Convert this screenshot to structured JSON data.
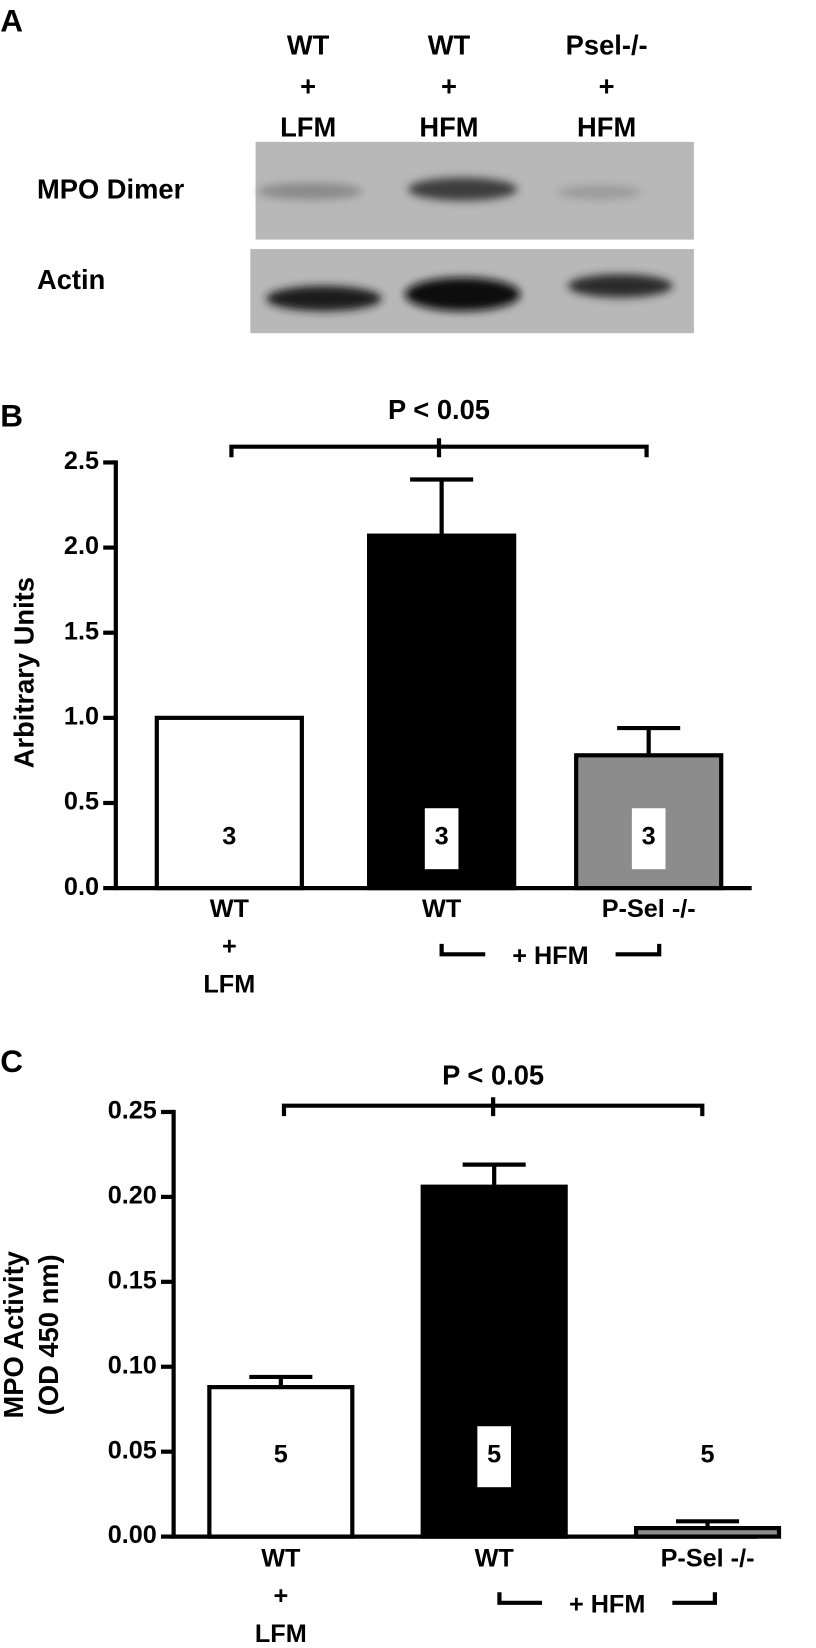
{
  "blot": {
    "panel_label": "A",
    "lanes": [
      [
        "WT",
        "+",
        "LFM"
      ],
      [
        "WT",
        "+",
        "HFM"
      ],
      [
        "Psel-/-",
        "+",
        "HFM"
      ]
    ],
    "rows": [
      "MPO Dimer",
      "Actin"
    ]
  },
  "chart_data": [
    {
      "type": "bar",
      "panel_label": "B",
      "ylabel": [
        "Arbitrary Units"
      ],
      "categories": [
        [
          "WT",
          "+",
          "LFM"
        ],
        [
          "WT"
        ],
        [
          "P-Sel -/-"
        ]
      ],
      "group_label": "+ HFM",
      "annotation": "P < 0.05",
      "values": [
        1.0,
        2.07,
        0.78
      ],
      "errors": [
        null,
        0.33,
        0.16
      ],
      "n": [
        3,
        3,
        3
      ],
      "colors": [
        "#ffffff",
        "#000000",
        "#8c8c8c"
      ],
      "ylim": [
        0,
        2.5
      ],
      "yticks": [
        {
          "value": 0,
          "label": "0.0"
        },
        {
          "value": 0.5,
          "label": "0.5"
        },
        {
          "value": 1,
          "label": "1.0"
        },
        {
          "value": 1.5,
          "label": "1.5"
        },
        {
          "value": 2,
          "label": "2.0"
        },
        {
          "value": 2.5,
          "label": "2.5"
        }
      ]
    },
    {
      "type": "bar",
      "panel_label": "C",
      "ylabel": [
        "MPO Activity",
        "(OD 450 nm)"
      ],
      "categories": [
        [
          "WT",
          "+",
          "LFM"
        ],
        [
          "WT"
        ],
        [
          "P-Sel -/-"
        ]
      ],
      "group_label": "+ HFM",
      "annotation": "P < 0.05",
      "values": [
        0.088,
        0.206,
        0.005
      ],
      "errors": [
        0.006,
        0.013,
        0.004
      ],
      "n": [
        5,
        5,
        5
      ],
      "colors": [
        "#ffffff",
        "#000000",
        "#8c8c8c"
      ],
      "ylim": [
        0,
        0.25
      ],
      "yticks": [
        {
          "value": 0,
          "label": "0.00"
        },
        {
          "value": 0.05,
          "label": "0.05"
        },
        {
          "value": 0.1,
          "label": "0.10"
        },
        {
          "value": 0.15,
          "label": "0.15"
        },
        {
          "value": 0.2,
          "label": "0.20"
        },
        {
          "value": 0.25,
          "label": "0.25"
        }
      ]
    }
  ]
}
